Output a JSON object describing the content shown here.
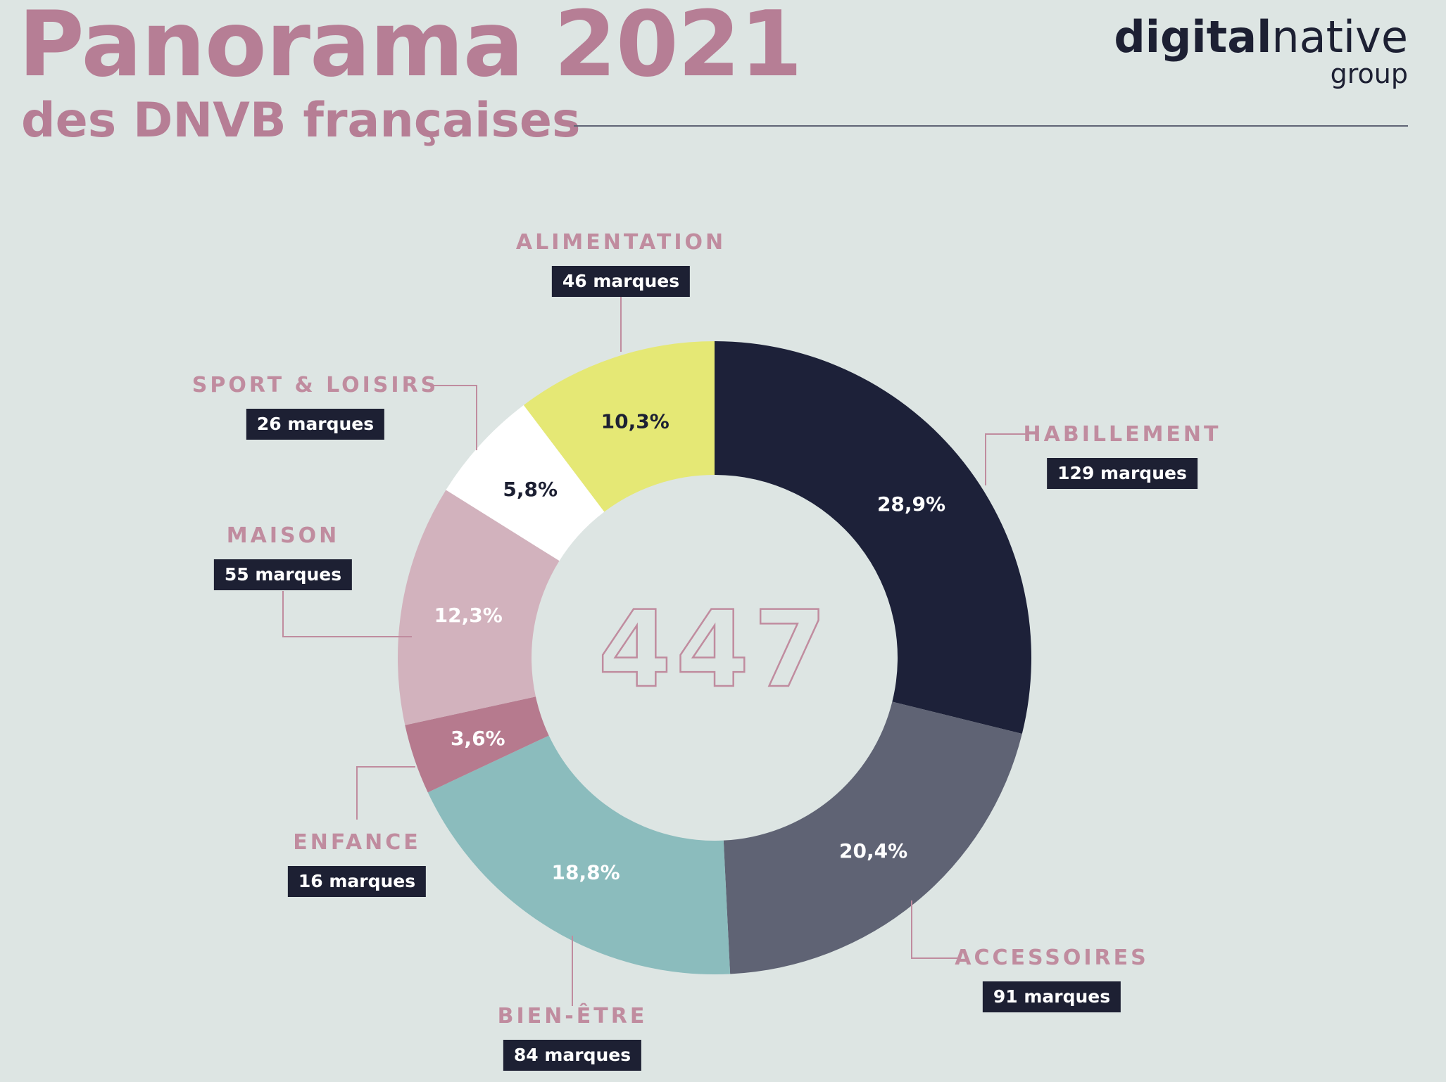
{
  "header": {
    "title": "Panorama 2021",
    "subtitle": "des DNVB françaises",
    "logo_main": "digitalnative",
    "logo_sub": "group"
  },
  "chart_data": {
    "type": "pie",
    "variant": "donut",
    "center_total": "447",
    "slices": [
      {
        "category": "HABILLEMENT",
        "count_label": "129 marques",
        "value": 129,
        "percent_label": "28,9%",
        "color": "#1d2139",
        "text_color": "#ffffff"
      },
      {
        "category": "ACCESSOIRES",
        "count_label": "91 marques",
        "value": 91,
        "percent_label": "20,4%",
        "color": "#5f6374",
        "text_color": "#ffffff"
      },
      {
        "category": "BIEN-ÊTRE",
        "count_label": "84 marques",
        "value": 84,
        "percent_label": "18,8%",
        "color": "#8bbcbd",
        "text_color": "#ffffff"
      },
      {
        "category": "ENFANCE",
        "count_label": "16 marques",
        "value": 16,
        "percent_label": "3,6%",
        "color": "#b67a8e",
        "text_color": "#ffffff"
      },
      {
        "category": "MAISON",
        "count_label": "55 marques",
        "value": 55,
        "percent_label": "12,3%",
        "color": "#d2b2bd",
        "text_color": "#ffffff"
      },
      {
        "category": "SPORT & LOISIRS",
        "count_label": "26 marques",
        "value": 26,
        "percent_label": "5,8%",
        "color": "#ffffff",
        "text_color": "#1d2033"
      },
      {
        "category": "ALIMENTATION",
        "count_label": "46 marques",
        "value": 46,
        "percent_label": "10,3%",
        "color": "#e5e875",
        "text_color": "#1d2033"
      }
    ]
  }
}
